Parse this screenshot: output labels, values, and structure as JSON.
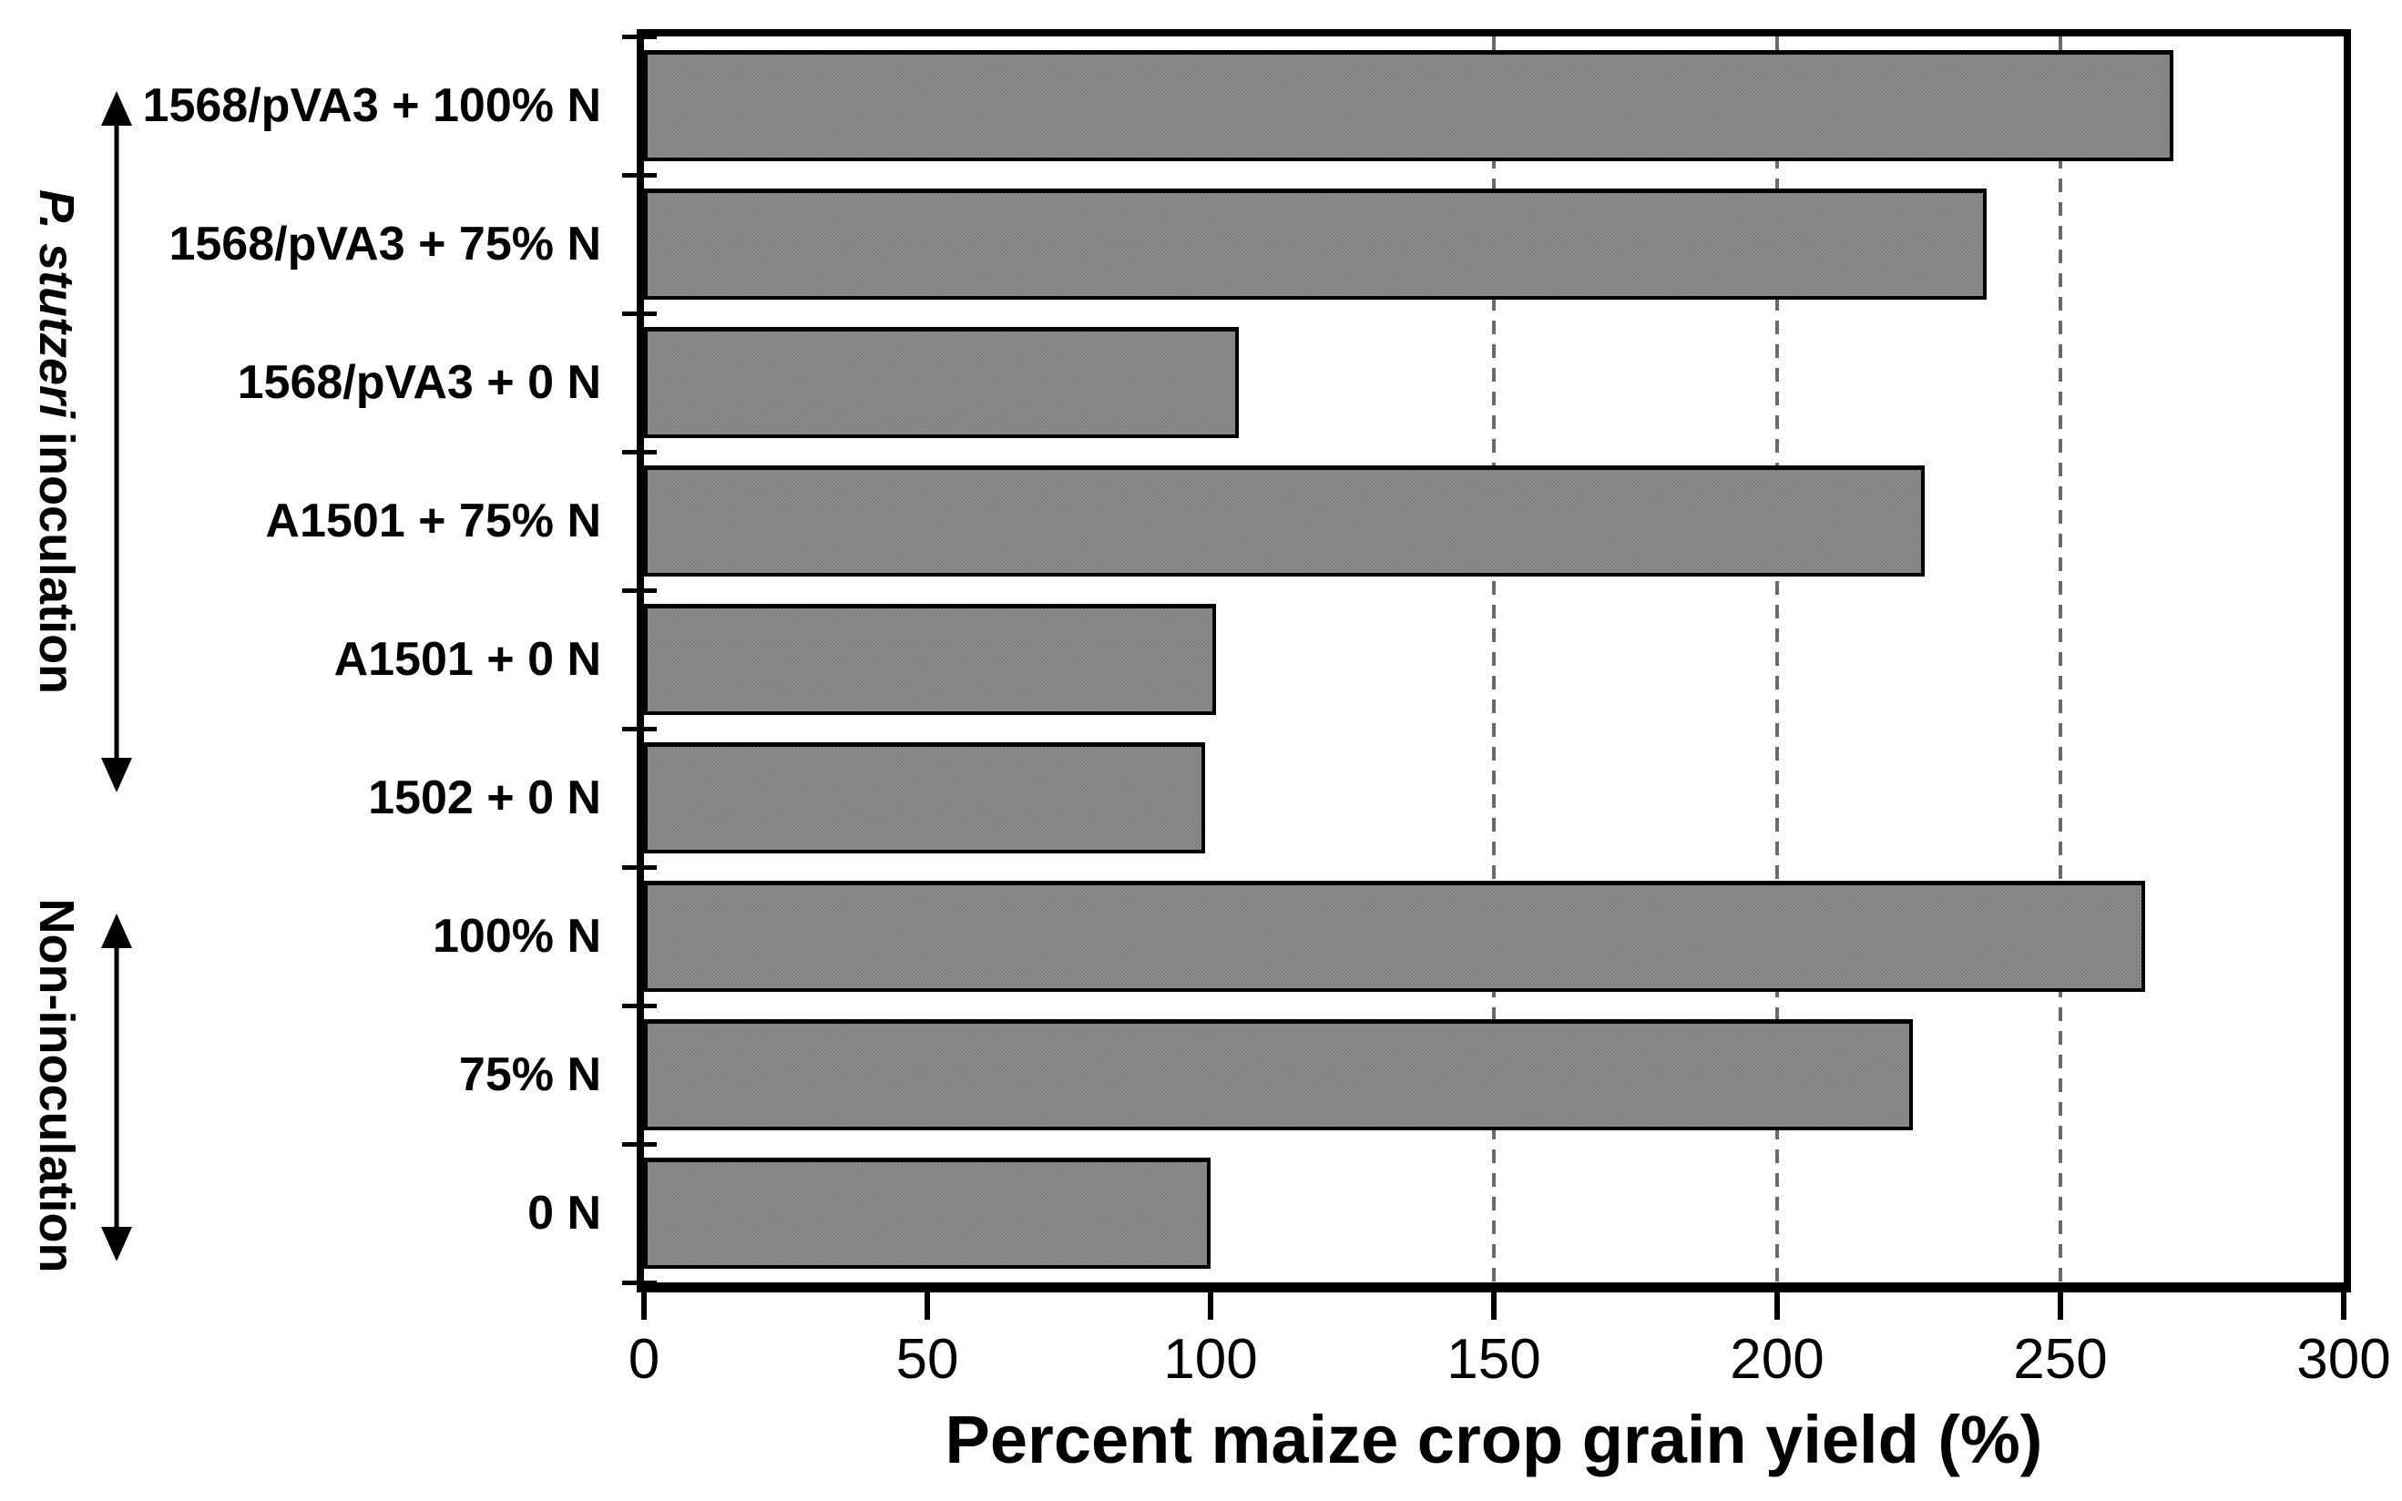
{
  "chart_data": {
    "type": "bar",
    "orientation": "horizontal",
    "title": "",
    "xlabel": "Percent maize crop grain yield (%)",
    "ylabel": "",
    "xlim": [
      0,
      300
    ],
    "x_ticks": [
      0,
      50,
      100,
      150,
      200,
      250,
      300
    ],
    "gridlines_x": [
      150,
      200,
      250
    ],
    "grid_style": "dashed-vertical",
    "categories": [
      "1568/pVA3 + 100% N",
      "1568/pVA3 + 75% N",
      "1568/pVA3 + 0 N",
      "A1501 + 75% N",
      "A1501 + 0 N",
      "1502 + 0 N",
      "100% N",
      "75% N",
      "0 N"
    ],
    "values": [
      270,
      237,
      105,
      226,
      101,
      99,
      265,
      224,
      100
    ],
    "group_annotations": [
      {
        "text": "P. stutzeri inoculation",
        "italic_part": "P. stutzeri",
        "rest_part": " inoculation",
        "category_start_index": 0,
        "category_end_index": 5,
        "arrow": "double-headed-vertical"
      },
      {
        "text": "Non-inoculation",
        "italic_part": "",
        "rest_part": "Non-inoculation",
        "category_start_index": 6,
        "category_end_index": 8,
        "arrow": "double-headed-vertical"
      }
    ],
    "colors": {
      "bar_fill": "#8d8d8d",
      "bar_fill_checker": "#7f7f7f",
      "bar_border": "#000000",
      "gridline": "#6a6a6a",
      "axis": "#000000",
      "background": "#ffffff"
    },
    "legend": null
  }
}
